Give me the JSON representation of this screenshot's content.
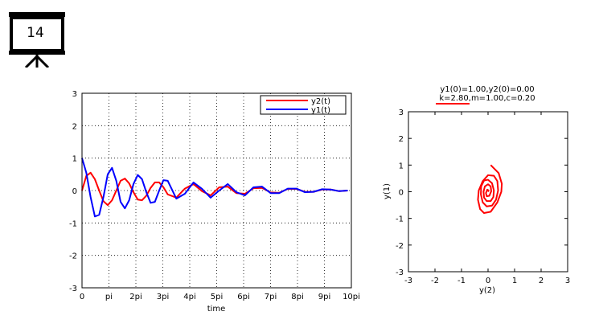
{
  "slide": {
    "number": "14"
  },
  "chart_data": [
    {
      "type": "line",
      "xlabel": "time",
      "ylabel": "",
      "xlim": [
        0,
        31.416
      ],
      "ylim": [
        -3,
        3
      ],
      "x_ticks": [
        0,
        3.1416,
        6.2832,
        9.4248,
        12.5664,
        15.708,
        18.8496,
        21.9911,
        25.1327,
        28.2743,
        31.4159
      ],
      "x_tick_labels": [
        "0",
        "pi",
        "2pi",
        "3pi",
        "4pi",
        "5pi",
        "6pi",
        "7pi",
        "8pi",
        "9pi",
        "10pi"
      ],
      "y_ticks": [
        -3,
        -2,
        -1,
        0,
        1,
        2,
        3
      ],
      "y_tick_labels": [
        "-3",
        "-2",
        "-1",
        "0",
        "1",
        "2",
        "3"
      ],
      "grid": true,
      "legend_position": "top-right",
      "series": [
        {
          "name": "y2(t)",
          "color": "#ff0000",
          "x": [
            0,
            0.5,
            1,
            1.5,
            2,
            2.5,
            3,
            3.5,
            4,
            4.5,
            5,
            5.5,
            6,
            6.5,
            7,
            7.5,
            8,
            8.5,
            9,
            9.5,
            10,
            11,
            12,
            13,
            14,
            15,
            16,
            17,
            18,
            19,
            20,
            21,
            22,
            23,
            24,
            25,
            26,
            27,
            28,
            29,
            30,
            31
          ],
          "values": [
            0,
            0.45,
            0.55,
            0.35,
            0.0,
            -0.33,
            -0.45,
            -0.3,
            0.0,
            0.3,
            0.37,
            0.22,
            -0.05,
            -0.28,
            -0.3,
            -0.16,
            0.08,
            0.25,
            0.25,
            0.1,
            -0.12,
            -0.22,
            0.06,
            0.2,
            -0.02,
            -0.15,
            0.1,
            0.12,
            -0.08,
            -0.1,
            0.07,
            0.08,
            -0.06,
            -0.07,
            0.05,
            0.05,
            -0.04,
            -0.04,
            0.03,
            0.03,
            -0.02,
            0.0
          ]
        },
        {
          "name": "y1(t)",
          "color": "#0000ff",
          "x": [
            0,
            0.5,
            1,
            1.5,
            2,
            2.5,
            3,
            3.5,
            4,
            4.5,
            5,
            5.5,
            6,
            6.5,
            7,
            7.5,
            8,
            8.5,
            9,
            9.5,
            10,
            11,
            12,
            13,
            14,
            15,
            16,
            17,
            18,
            19,
            20,
            21,
            22,
            23,
            24,
            25,
            26,
            27,
            28,
            29,
            30,
            31
          ],
          "values": [
            1.0,
            0.55,
            -0.2,
            -0.8,
            -0.75,
            -0.2,
            0.5,
            0.7,
            0.3,
            -0.35,
            -0.55,
            -0.3,
            0.2,
            0.48,
            0.35,
            -0.05,
            -0.38,
            -0.35,
            0.0,
            0.32,
            0.3,
            -0.25,
            -0.1,
            0.25,
            0.05,
            -0.22,
            0.0,
            0.2,
            -0.05,
            -0.15,
            0.1,
            0.12,
            -0.08,
            -0.08,
            0.06,
            0.06,
            -0.05,
            -0.04,
            0.04,
            0.03,
            -0.02,
            0.0
          ]
        }
      ]
    },
    {
      "type": "line",
      "title": "y1(0)=1.00,y2(0)=0.00",
      "subtitle": "k=2.80,m=1.00,c=0.20",
      "xlabel": "y(2)",
      "ylabel": "y(1)",
      "xlim": [
        -3,
        3
      ],
      "ylim": [
        -3,
        3
      ],
      "x_ticks": [
        -3,
        -2,
        -1,
        0,
        1,
        2,
        3
      ],
      "x_tick_labels": [
        "-3",
        "-2",
        "-1",
        "0",
        "1",
        "2",
        "3"
      ],
      "y_ticks": [
        -3,
        -2,
        -1,
        0,
        1,
        2,
        3
      ],
      "y_tick_labels": [
        "-3",
        "-2",
        "-1",
        "0",
        "1",
        "2",
        "3"
      ],
      "grid": false,
      "series": [
        {
          "color": "#ff0000",
          "x": [
            0.1,
            0.4,
            0.52,
            0.5,
            0.35,
            0.1,
            -0.15,
            -0.3,
            -0.38,
            -0.35,
            -0.2,
            0.0,
            0.22,
            0.35,
            0.38,
            0.3,
            0.15,
            -0.05,
            -0.2,
            -0.27,
            -0.26,
            -0.15,
            0.0,
            0.15,
            0.22,
            0.2,
            0.1,
            -0.05,
            -0.15,
            -0.17,
            -0.12,
            0.0,
            0.1,
            0.12,
            0.05,
            -0.05,
            -0.08,
            -0.03,
            0.02,
            0.0
          ],
          "values": [
            1.0,
            0.7,
            0.3,
            0.0,
            -0.4,
            -0.75,
            -0.8,
            -0.65,
            -0.3,
            0.05,
            0.4,
            0.62,
            0.6,
            0.4,
            0.05,
            -0.3,
            -0.52,
            -0.55,
            -0.4,
            -0.1,
            0.2,
            0.42,
            0.45,
            0.32,
            0.05,
            -0.2,
            -0.35,
            -0.35,
            -0.22,
            0.0,
            0.2,
            0.28,
            0.2,
            0.02,
            -0.15,
            -0.17,
            -0.05,
            0.08,
            0.05,
            0.0
          ]
        }
      ]
    }
  ]
}
